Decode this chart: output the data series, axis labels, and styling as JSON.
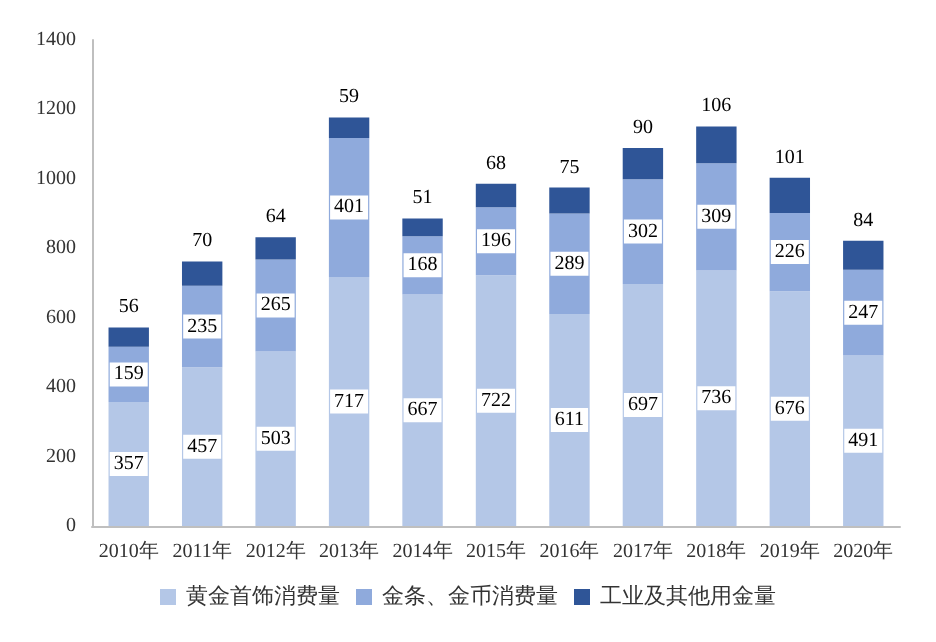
{
  "chart_data": {
    "type": "bar",
    "stacked": true,
    "categories": [
      "2010年",
      "2011年",
      "2012年",
      "2013年",
      "2014年",
      "2015年",
      "2016年",
      "2017年",
      "2018年",
      "2019年",
      "2020年"
    ],
    "series": [
      {
        "name": "黄金首饰消费量",
        "color": "#b4c7e7",
        "values": [
          357,
          457,
          503,
          717,
          667,
          722,
          611,
          697,
          736,
          676,
          491
        ]
      },
      {
        "name": "金条、金币消费量",
        "color": "#8faadc",
        "values": [
          159,
          235,
          265,
          401,
          168,
          196,
          289,
          302,
          309,
          226,
          247
        ]
      },
      {
        "name": "工业及其他用金量",
        "color": "#2f5597",
        "values": [
          56,
          70,
          64,
          59,
          51,
          68,
          75,
          90,
          106,
          101,
          84
        ]
      }
    ],
    "ylim": [
      0,
      1400
    ],
    "yticks": [
      0,
      200,
      400,
      600,
      800,
      1000,
      1200,
      1400
    ],
    "grid": false,
    "legend": "bottom",
    "data_labels": true
  }
}
